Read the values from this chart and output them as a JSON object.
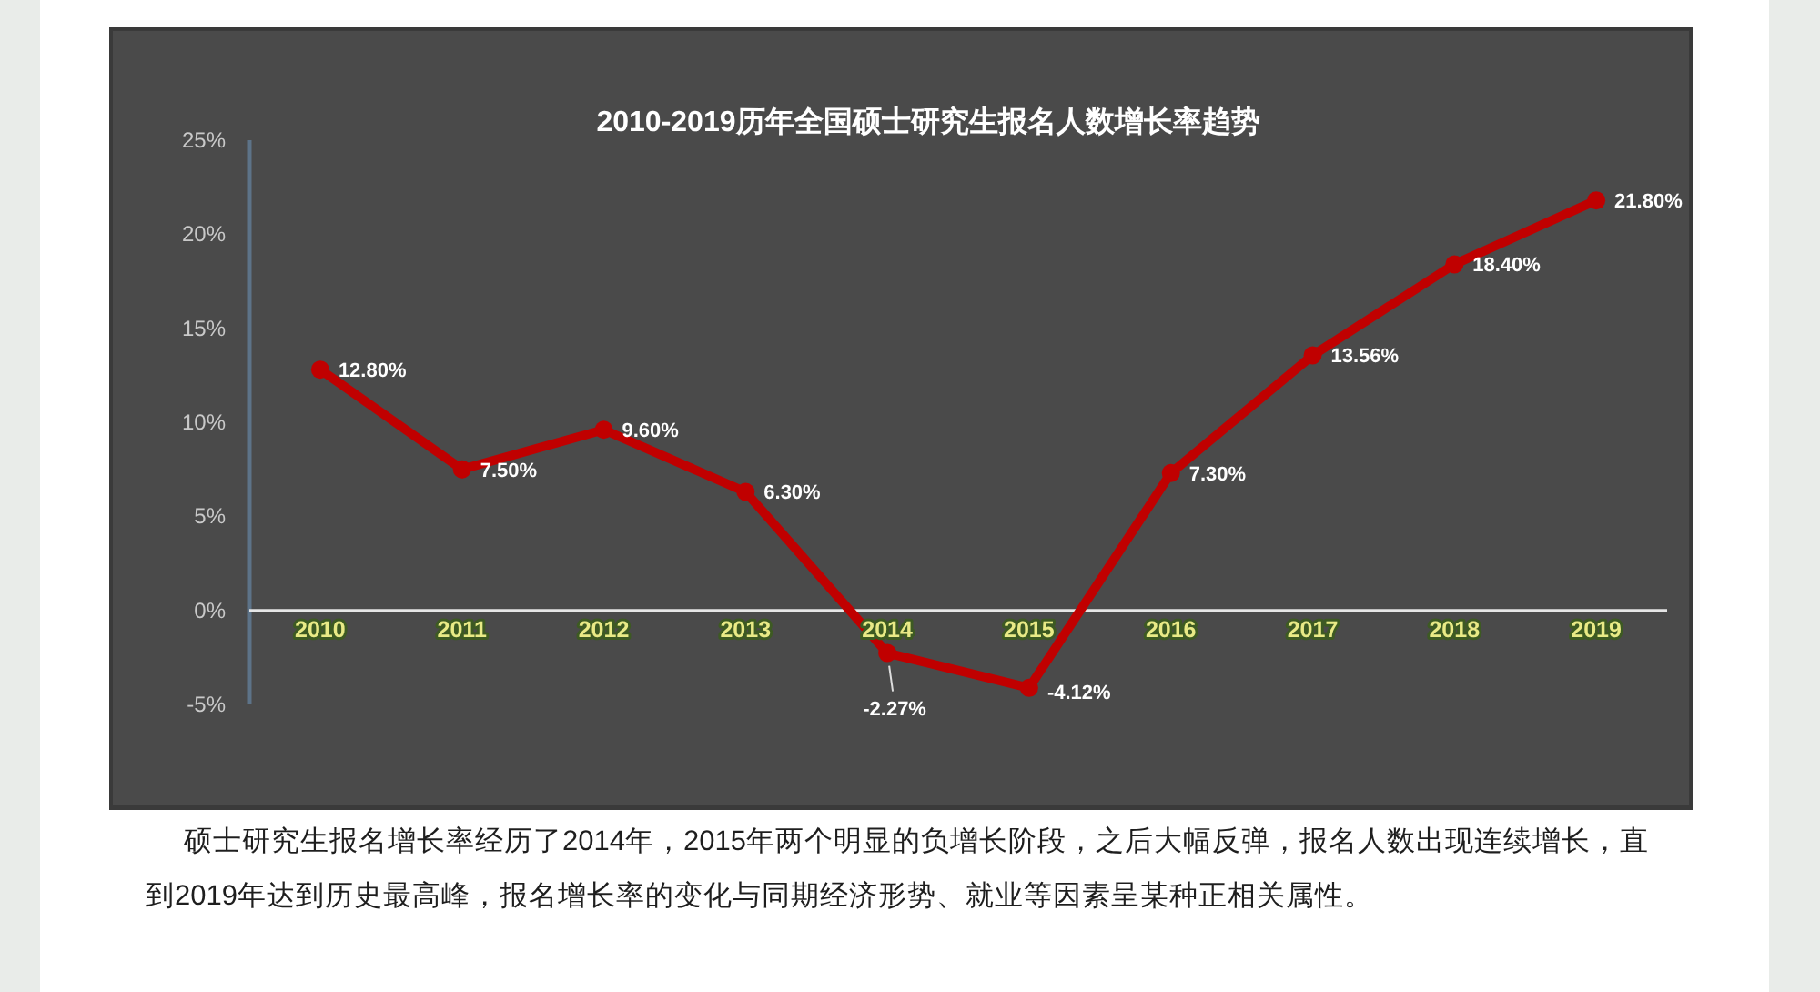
{
  "chart_data": {
    "type": "line",
    "title": "2010-2019历年全国硕士研究生报名人数增长率趋势",
    "categories": [
      "2010",
      "2011",
      "2012",
      "2013",
      "2014",
      "2015",
      "2016",
      "2017",
      "2018",
      "2019"
    ],
    "values": [
      12.8,
      7.5,
      9.6,
      6.3,
      -2.27,
      -4.12,
      7.3,
      13.56,
      18.4,
      21.8
    ],
    "value_labels": [
      "12.80%",
      "7.50%",
      "9.60%",
      "6.30%",
      "-2.27%",
      "-4.12%",
      "7.30%",
      "13.56%",
      "18.40%",
      "21.80%"
    ],
    "color": "#c00000",
    "marker": "circle",
    "line_style": "solid",
    "ylim": [
      -5,
      25
    ],
    "yticks": [
      {
        "value": -5,
        "label": "-5%"
      },
      {
        "value": 0,
        "label": "0%"
      },
      {
        "value": 5,
        "label": "5%"
      },
      {
        "value": 10,
        "label": "10%"
      },
      {
        "value": 15,
        "label": "15%"
      },
      {
        "value": 20,
        "label": "20%"
      },
      {
        "value": 25,
        "label": "25%"
      }
    ],
    "annotations": [
      "硕士研究生报名增长率经历了2014年，2015年两个明显的负增长阶段，之后大幅反弹，报名人数出现连续增长，直到2019年达到历史最高峰，报名增长率的变化与同期经济形势、就业等因素呈某种正相关属性。"
    ]
  }
}
